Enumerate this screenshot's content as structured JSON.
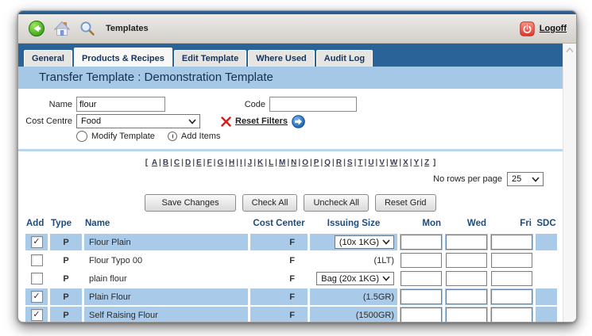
{
  "toolbar": {
    "title": "Templates",
    "logoff_label": "Logoff",
    "icons": [
      "back-icon",
      "home-icon",
      "search-icon",
      "power-icon"
    ]
  },
  "tabs": [
    {
      "label": "General",
      "active": false
    },
    {
      "label": "Products & Recipes",
      "active": true
    },
    {
      "label": "Edit Template",
      "active": false
    },
    {
      "label": "Where Used",
      "active": false
    },
    {
      "label": "Audit Log",
      "active": false
    }
  ],
  "page_title": "Transfer Template : Demonstration Template",
  "filters": {
    "name_label": "Name",
    "name_value": "flour",
    "code_label": "Code",
    "code_value": "",
    "cost_centre_label": "Cost Centre",
    "cost_centre_value": "Food",
    "reset_filters_label": "Reset Filters",
    "mode_options": [
      {
        "label": "Modify Template",
        "selected": false
      },
      {
        "label": "Add Items",
        "selected": true
      }
    ]
  },
  "alphabet": [
    "A",
    "B",
    "C",
    "D",
    "E",
    "F",
    "G",
    "H",
    "I",
    "J",
    "K",
    "L",
    "M",
    "N",
    "O",
    "P",
    "Q",
    "R",
    "S",
    "T",
    "U",
    "V",
    "W",
    "X",
    "Y",
    "Z"
  ],
  "pagination": {
    "label": "No rows per page",
    "value": "25"
  },
  "actions": [
    "Save Changes",
    "Check All",
    "Uncheck All",
    "Reset Grid"
  ],
  "table": {
    "headers": [
      "Add",
      "Type",
      "Name",
      "Cost Center",
      "Issuing Size",
      "Mon",
      "Wed",
      "Fri",
      "SDC"
    ],
    "rows": [
      {
        "checked": true,
        "type": "P",
        "name": "Flour Plain",
        "cost_center": "F",
        "issuing_size": "(10x 1KG)",
        "issuing_is_select": true,
        "mon": "",
        "wed": "",
        "fri": ""
      },
      {
        "checked": false,
        "type": "P",
        "name": "Flour Typo 00",
        "cost_center": "F",
        "issuing_size": "(1LT)",
        "issuing_is_select": false,
        "mon": "",
        "wed": "",
        "fri": ""
      },
      {
        "checked": false,
        "type": "P",
        "name": "plain flour",
        "cost_center": "F",
        "issuing_size": "Bag (20x 1KG)",
        "issuing_is_select": true,
        "mon": "",
        "wed": "",
        "fri": ""
      },
      {
        "checked": true,
        "type": "P",
        "name": "Plain Flour",
        "cost_center": "F",
        "issuing_size": "(1.5GR)",
        "issuing_is_select": false,
        "mon": "",
        "wed": "",
        "fri": ""
      },
      {
        "checked": true,
        "type": "P",
        "name": "Self Raising Flour",
        "cost_center": "F",
        "issuing_size": "(1500GR)",
        "issuing_is_select": false,
        "mon": "",
        "wed": "",
        "fri": ""
      }
    ]
  },
  "colors": {
    "tab_band": "#2a6397",
    "title_band": "#a4c8e6",
    "row_highlight": "#a9cbe9",
    "header_text": "#1c4b7c",
    "logoff_red": "#e2574c",
    "back_green": "#3db01f",
    "go_arrow_blue": "#1f74c8"
  }
}
